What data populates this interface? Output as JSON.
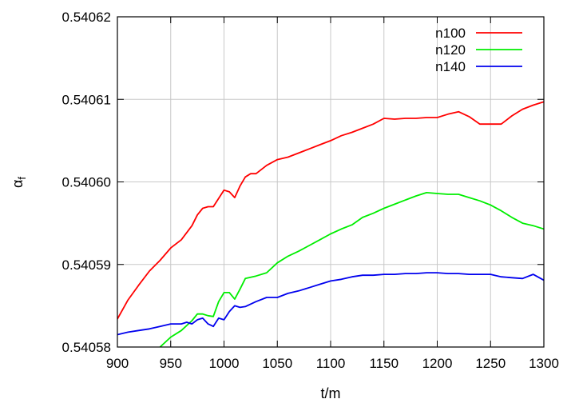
{
  "chart_data": {
    "type": "line",
    "xlabel": "t/m",
    "ylabel": "α",
    "ylabel_sub": "f",
    "xlim": [
      900,
      1300
    ],
    "ylim": [
      0.54058,
      0.54062
    ],
    "xticks": [
      900,
      950,
      1000,
      1050,
      1100,
      1150,
      1200,
      1250,
      1300
    ],
    "yticks": [
      "0.54058",
      "0.54059",
      "0.54060",
      "0.54061",
      "0.54062"
    ],
    "grid": true,
    "legend_position": "top-right",
    "series": [
      {
        "name": "n100",
        "color": "#ff0000",
        "x": [
          900,
          910,
          920,
          930,
          940,
          950,
          960,
          970,
          975,
          980,
          985,
          990,
          995,
          1000,
          1005,
          1010,
          1015,
          1020,
          1025,
          1030,
          1040,
          1050,
          1060,
          1070,
          1080,
          1090,
          1100,
          1110,
          1120,
          1130,
          1140,
          1150,
          1160,
          1170,
          1180,
          1190,
          1200,
          1210,
          1220,
          1230,
          1240,
          1250,
          1260,
          1270,
          1280,
          1290,
          1300
        ],
        "y": [
          0.5405834,
          0.5405857,
          0.5405875,
          0.5405892,
          0.5405905,
          0.540592,
          0.540593,
          0.5405947,
          0.540596,
          0.5405968,
          0.540597,
          0.540597,
          0.540598,
          0.540599,
          0.5405988,
          0.5405981,
          0.5405995,
          0.5406006,
          0.540601,
          0.540601,
          0.540602,
          0.5406027,
          0.540603,
          0.5406035,
          0.540604,
          0.5406045,
          0.540605,
          0.5406056,
          0.540606,
          0.5406065,
          0.540607,
          0.5406077,
          0.5406076,
          0.5406077,
          0.5406077,
          0.5406078,
          0.5406078,
          0.5406082,
          0.5406085,
          0.5406079,
          0.540607,
          0.540607,
          0.540607,
          0.540608,
          0.5406088,
          0.5406093,
          0.5406097
        ]
      },
      {
        "name": "n120",
        "color": "#00ee00",
        "x": [
          940,
          950,
          960,
          970,
          975,
          980,
          985,
          990,
          995,
          1000,
          1005,
          1010,
          1015,
          1020,
          1030,
          1040,
          1050,
          1060,
          1070,
          1080,
          1090,
          1100,
          1110,
          1120,
          1130,
          1140,
          1150,
          1160,
          1170,
          1180,
          1190,
          1200,
          1210,
          1220,
          1230,
          1240,
          1250,
          1260,
          1270,
          1280,
          1290,
          1300
        ],
        "y": [
          0.54058,
          0.5405812,
          0.540582,
          0.5405832,
          0.540584,
          0.540584,
          0.5405838,
          0.5405837,
          0.5405855,
          0.5405866,
          0.5405866,
          0.5405858,
          0.540587,
          0.5405883,
          0.5405886,
          0.540589,
          0.5405902,
          0.540591,
          0.5405916,
          0.5405923,
          0.540593,
          0.5405937,
          0.5405943,
          0.5405948,
          0.5405957,
          0.5405962,
          0.5405968,
          0.5405973,
          0.5405978,
          0.5405983,
          0.5405987,
          0.5405986,
          0.5405985,
          0.5405985,
          0.5405981,
          0.5405977,
          0.5405972,
          0.5405965,
          0.5405957,
          0.540595,
          0.5405947,
          0.5405943
        ]
      },
      {
        "name": "n140",
        "color": "#0000ee",
        "x": [
          900,
          910,
          920,
          930,
          940,
          950,
          960,
          965,
          970,
          975,
          980,
          985,
          990,
          995,
          1000,
          1005,
          1010,
          1015,
          1020,
          1030,
          1040,
          1050,
          1060,
          1070,
          1080,
          1090,
          1100,
          1110,
          1120,
          1130,
          1140,
          1150,
          1160,
          1170,
          1180,
          1190,
          1200,
          1210,
          1220,
          1230,
          1240,
          1250,
          1260,
          1270,
          1280,
          1290,
          1300
        ],
        "y": [
          0.5405815,
          0.5405818,
          0.540582,
          0.5405822,
          0.5405825,
          0.5405828,
          0.5405828,
          0.540583,
          0.5405828,
          0.5405833,
          0.5405835,
          0.5405828,
          0.5405825,
          0.5405835,
          0.5405833,
          0.5405843,
          0.540585,
          0.5405848,
          0.5405849,
          0.5405855,
          0.540586,
          0.540586,
          0.5405865,
          0.5405868,
          0.5405872,
          0.5405876,
          0.540588,
          0.5405882,
          0.5405885,
          0.5405887,
          0.5405887,
          0.5405888,
          0.5405888,
          0.5405889,
          0.5405889,
          0.540589,
          0.540589,
          0.5405889,
          0.5405889,
          0.5405888,
          0.5405888,
          0.5405888,
          0.5405885,
          0.5405884,
          0.5405883,
          0.5405888,
          0.5405881
        ]
      }
    ]
  }
}
